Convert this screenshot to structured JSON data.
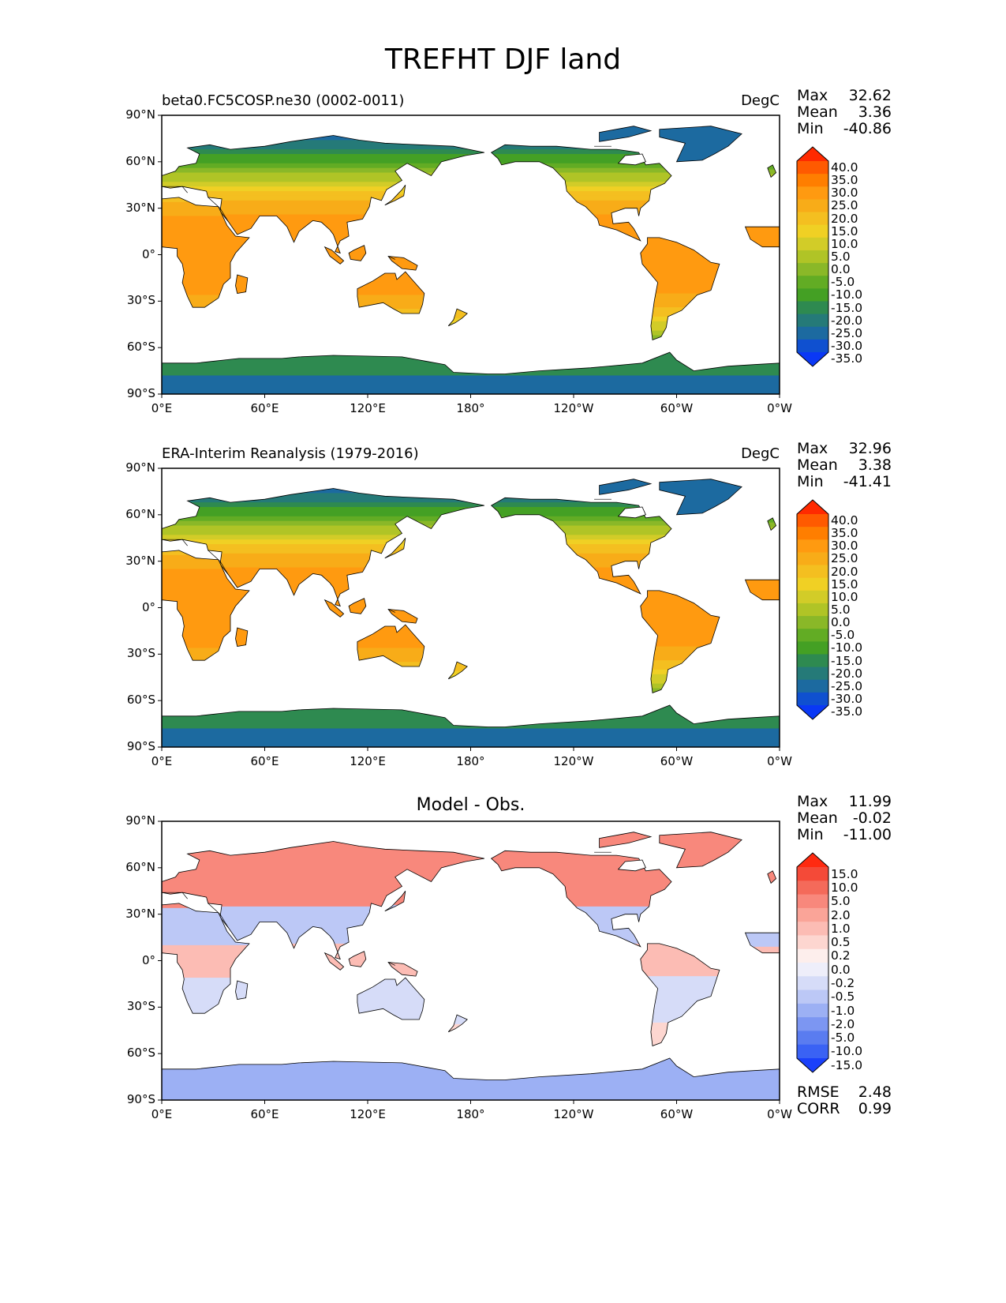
{
  "title": "TREFHT DJF land",
  "panels": [
    {
      "left_title": "beta0.FC5COSP.ne30 (0002-0011)",
      "center_title": "",
      "units": "DegC",
      "stats": {
        "labels": [
          "Max",
          "Mean",
          "Min"
        ],
        "values": [
          "32.62",
          "3.36",
          "-40.86"
        ]
      },
      "colorbar": {
        "ticks": [
          "40.0",
          "35.0",
          "30.0",
          "25.0",
          "20.0",
          "15.0",
          "10.0",
          "5.0",
          "0.0",
          "-5.0",
          "-10.0",
          "-15.0",
          "-20.0",
          "-25.0",
          "-30.0",
          "-35.0"
        ],
        "colors": [
          "#ff2a00",
          "#ff5a00",
          "#ff7e00",
          "#ff9a10",
          "#f8ac18",
          "#f4bf20",
          "#f0d024",
          "#d2cc28",
          "#b0c426",
          "#8ab828",
          "#62ac24",
          "#44a024",
          "#2e8a50",
          "#257a78",
          "#1c6aa0",
          "#0f50d0",
          "#0a38f5"
        ]
      },
      "map_type": "abs",
      "footer": null
    },
    {
      "left_title": "ERA-Interim Reanalysis (1979-2016)",
      "center_title": "",
      "units": "DegC",
      "stats": {
        "labels": [
          "Max",
          "Mean",
          "Min"
        ],
        "values": [
          "32.96",
          "3.38",
          "-41.41"
        ]
      },
      "colorbar": {
        "ticks": [
          "40.0",
          "35.0",
          "30.0",
          "25.0",
          "20.0",
          "15.0",
          "10.0",
          "5.0",
          "0.0",
          "-5.0",
          "-10.0",
          "-15.0",
          "-20.0",
          "-25.0",
          "-30.0",
          "-35.0"
        ],
        "colors": [
          "#ff2a00",
          "#ff5a00",
          "#ff7e00",
          "#ff9a10",
          "#f8ac18",
          "#f4bf20",
          "#f0d024",
          "#d2cc28",
          "#b0c426",
          "#8ab828",
          "#62ac24",
          "#44a024",
          "#2e8a50",
          "#257a78",
          "#1c6aa0",
          "#0f50d0",
          "#0a38f5"
        ]
      },
      "map_type": "abs",
      "footer": null
    },
    {
      "left_title": "",
      "center_title": "Model - Obs.",
      "units": "",
      "stats": {
        "labels": [
          "Max",
          "Mean",
          "Min"
        ],
        "values": [
          "11.99",
          "-0.02",
          "-11.00"
        ]
      },
      "colorbar": {
        "ticks": [
          "15.0",
          "10.0",
          "5.0",
          "2.0",
          "1.0",
          "0.5",
          "0.2",
          "0.0",
          "-0.2",
          "-0.5",
          "-1.0",
          "-2.0",
          "-5.0",
          "-10.0",
          "-15.0"
        ],
        "colors": [
          "#ff2a10",
          "#f44a38",
          "#f46a5a",
          "#f8887c",
          "#faa498",
          "#fcbcb4",
          "#fdd6d0",
          "#fdeeec",
          "#eeeefa",
          "#d6dcf8",
          "#bcc8f6",
          "#9cb0f4",
          "#7c96f2",
          "#5a7cf0",
          "#3a62f4",
          "#1a40fa"
        ]
      },
      "map_type": "diff",
      "footer": {
        "labels": [
          "RMSE",
          "CORR"
        ],
        "values": [
          "2.48",
          "0.99"
        ]
      }
    }
  ],
  "axes": {
    "x_ticks": [
      "0°E",
      "60°E",
      "120°E",
      "180°",
      "120°W",
      "60°W",
      "0°W"
    ],
    "y_ticks": [
      "90°N",
      "60°N",
      "30°N",
      "0°",
      "30°S",
      "60°S",
      "90°S"
    ]
  },
  "chart_data": [
    {
      "type": "heatmap",
      "title": "beta0.FC5COSP.ne30 (0002-0011)",
      "units": "DegC",
      "x_range_degE": [
        0,
        360
      ],
      "y_range_deg": [
        -90,
        90
      ],
      "color_levels": [
        -35,
        -30,
        -25,
        -20,
        -15,
        -10,
        -5,
        0,
        5,
        10,
        15,
        20,
        25,
        30,
        35,
        40
      ],
      "max": 32.62,
      "mean": 3.36,
      "min": -40.86
    },
    {
      "type": "heatmap",
      "title": "ERA-Interim Reanalysis (1979-2016)",
      "units": "DegC",
      "x_range_degE": [
        0,
        360
      ],
      "y_range_deg": [
        -90,
        90
      ],
      "color_levels": [
        -35,
        -30,
        -25,
        -20,
        -15,
        -10,
        -5,
        0,
        5,
        10,
        15,
        20,
        25,
        30,
        35,
        40
      ],
      "max": 32.96,
      "mean": 3.38,
      "min": -41.41
    },
    {
      "type": "heatmap",
      "title": "Model - Obs.",
      "x_range_degE": [
        0,
        360
      ],
      "y_range_deg": [
        -90,
        90
      ],
      "color_levels": [
        -15,
        -10,
        -5,
        -2,
        -1,
        -0.5,
        -0.2,
        0,
        0.2,
        0.5,
        1,
        2,
        5,
        10,
        15
      ],
      "max": 11.99,
      "mean": -0.02,
      "min": -11.0,
      "rmse": 2.48,
      "corr": 0.99
    }
  ]
}
